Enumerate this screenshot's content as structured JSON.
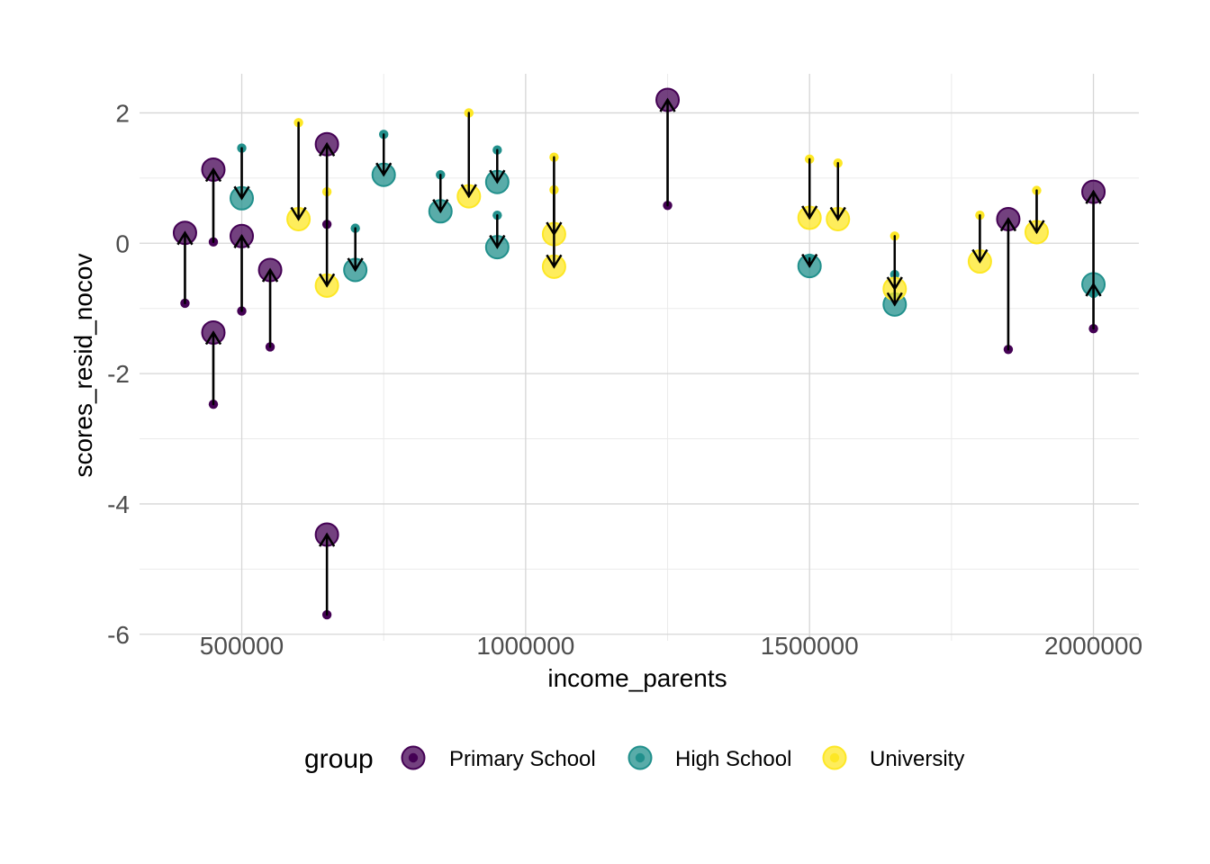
{
  "chart_data": {
    "type": "scatter",
    "title": "",
    "xlabel": "income_parents",
    "ylabel": "scores_resid_nocov",
    "xlim": [
      320000,
      2080000
    ],
    "ylim": [
      -6.1,
      2.6
    ],
    "x_ticks": [
      500000,
      1000000,
      1500000,
      2000000
    ],
    "x_tick_labels": [
      "500000",
      "1000000",
      "1500000",
      "2000000"
    ],
    "y_ticks": [
      2,
      0,
      -2,
      -4,
      -6
    ],
    "y_tick_labels": [
      "2",
      "0",
      "-2",
      "-4",
      "-6"
    ],
    "grid": true,
    "legend": {
      "title": "group",
      "position": "bottom",
      "entries": [
        {
          "name": "Primary School",
          "color": "#440154"
        },
        {
          "name": "High School",
          "color": "#21908C"
        },
        {
          "name": "University",
          "color": "#FDE725"
        }
      ]
    },
    "encoding": "Small dot marks the start value, large dot the end value, arrow points from start to end.",
    "series": [
      {
        "name": "Primary School",
        "color": "#440154",
        "points": [
          {
            "x": 400000,
            "from": -0.92,
            "to": 0.16
          },
          {
            "x": 450000,
            "from": 0.02,
            "to": 1.13
          },
          {
            "x": 450000,
            "from": -2.47,
            "to": -1.37
          },
          {
            "x": 500000,
            "from": -1.04,
            "to": 0.11
          },
          {
            "x": 550000,
            "from": -1.59,
            "to": -0.41
          },
          {
            "x": 650000,
            "from": 0.29,
            "to": 1.52
          },
          {
            "x": 650000,
            "from": -5.7,
            "to": -4.47
          },
          {
            "x": 1250000,
            "from": 0.58,
            "to": 2.2
          },
          {
            "x": 1850000,
            "from": -1.63,
            "to": 0.37
          },
          {
            "x": 2000000,
            "from": -1.31,
            "to": 0.79
          }
        ]
      },
      {
        "name": "High School",
        "color": "#21908C",
        "points": [
          {
            "x": 500000,
            "from": 1.46,
            "to": 0.69
          },
          {
            "x": 700000,
            "from": 0.23,
            "to": -0.41
          },
          {
            "x": 750000,
            "from": 1.67,
            "to": 1.05
          },
          {
            "x": 850000,
            "from": 1.05,
            "to": 0.49
          },
          {
            "x": 950000,
            "from": 1.43,
            "to": 0.94
          },
          {
            "x": 950000,
            "from": 0.43,
            "to": -0.06
          },
          {
            "x": 1500000,
            "from": -0.23,
            "to": -0.35
          },
          {
            "x": 1650000,
            "from": -0.48,
            "to": -0.94
          },
          {
            "x": 2000000,
            "from": -0.77,
            "to": -0.63
          }
        ]
      },
      {
        "name": "University",
        "color": "#FDE725",
        "points": [
          {
            "x": 600000,
            "from": 1.85,
            "to": 0.37
          },
          {
            "x": 650000,
            "from": 0.79,
            "to": -0.65
          },
          {
            "x": 900000,
            "from": 2.0,
            "to": 0.72
          },
          {
            "x": 1050000,
            "from": 1.32,
            "to": 0.14
          },
          {
            "x": 1050000,
            "from": 0.82,
            "to": -0.36
          },
          {
            "x": 1500000,
            "from": 1.29,
            "to": 0.39
          },
          {
            "x": 1550000,
            "from": 1.23,
            "to": 0.37
          },
          {
            "x": 1650000,
            "from": 0.11,
            "to": -0.7
          },
          {
            "x": 1800000,
            "from": 0.43,
            "to": -0.28
          },
          {
            "x": 1900000,
            "from": 0.81,
            "to": 0.17
          }
        ]
      }
    ]
  }
}
